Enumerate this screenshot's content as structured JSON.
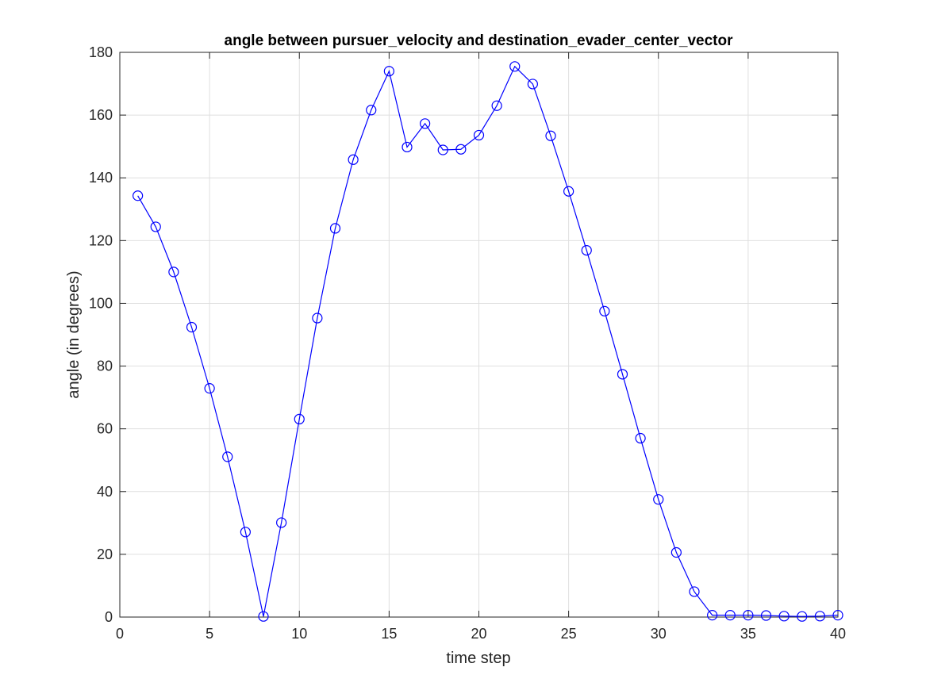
{
  "chart_data": {
    "type": "line",
    "title": "angle between pursuer_velocity and destination_evader_center_vector",
    "xlabel": "time step",
    "ylabel": "angle (in degrees)",
    "xlim": [
      0,
      40
    ],
    "ylim": [
      0,
      180
    ],
    "xticks": [
      0,
      5,
      10,
      15,
      20,
      25,
      30,
      35,
      40
    ],
    "yticks": [
      0,
      20,
      40,
      60,
      80,
      100,
      120,
      140,
      160,
      180
    ],
    "grid": true,
    "series": [
      {
        "name": "angle",
        "color": "#0000ff",
        "marker": "circle",
        "x": [
          1,
          2,
          3,
          4,
          5,
          6,
          7,
          8,
          9,
          10,
          11,
          12,
          13,
          14,
          15,
          16,
          17,
          18,
          19,
          20,
          21,
          22,
          23,
          24,
          25,
          26,
          27,
          28,
          29,
          30,
          31,
          32,
          33,
          34,
          35,
          36,
          37,
          38,
          39,
          40
        ],
        "y": [
          134.3,
          124.4,
          110.0,
          92.4,
          72.9,
          51.1,
          27.1,
          0.2,
          30.1,
          63.1,
          95.3,
          123.9,
          145.8,
          161.6,
          174.0,
          149.8,
          157.3,
          148.9,
          149.1,
          153.6,
          163.0,
          175.5,
          169.9,
          153.4,
          135.7,
          116.9,
          97.5,
          77.4,
          57.0,
          37.5,
          20.6,
          8.1,
          0.6,
          0.6,
          0.6,
          0.5,
          0.3,
          0.2,
          0.3,
          0.6
        ]
      }
    ]
  }
}
